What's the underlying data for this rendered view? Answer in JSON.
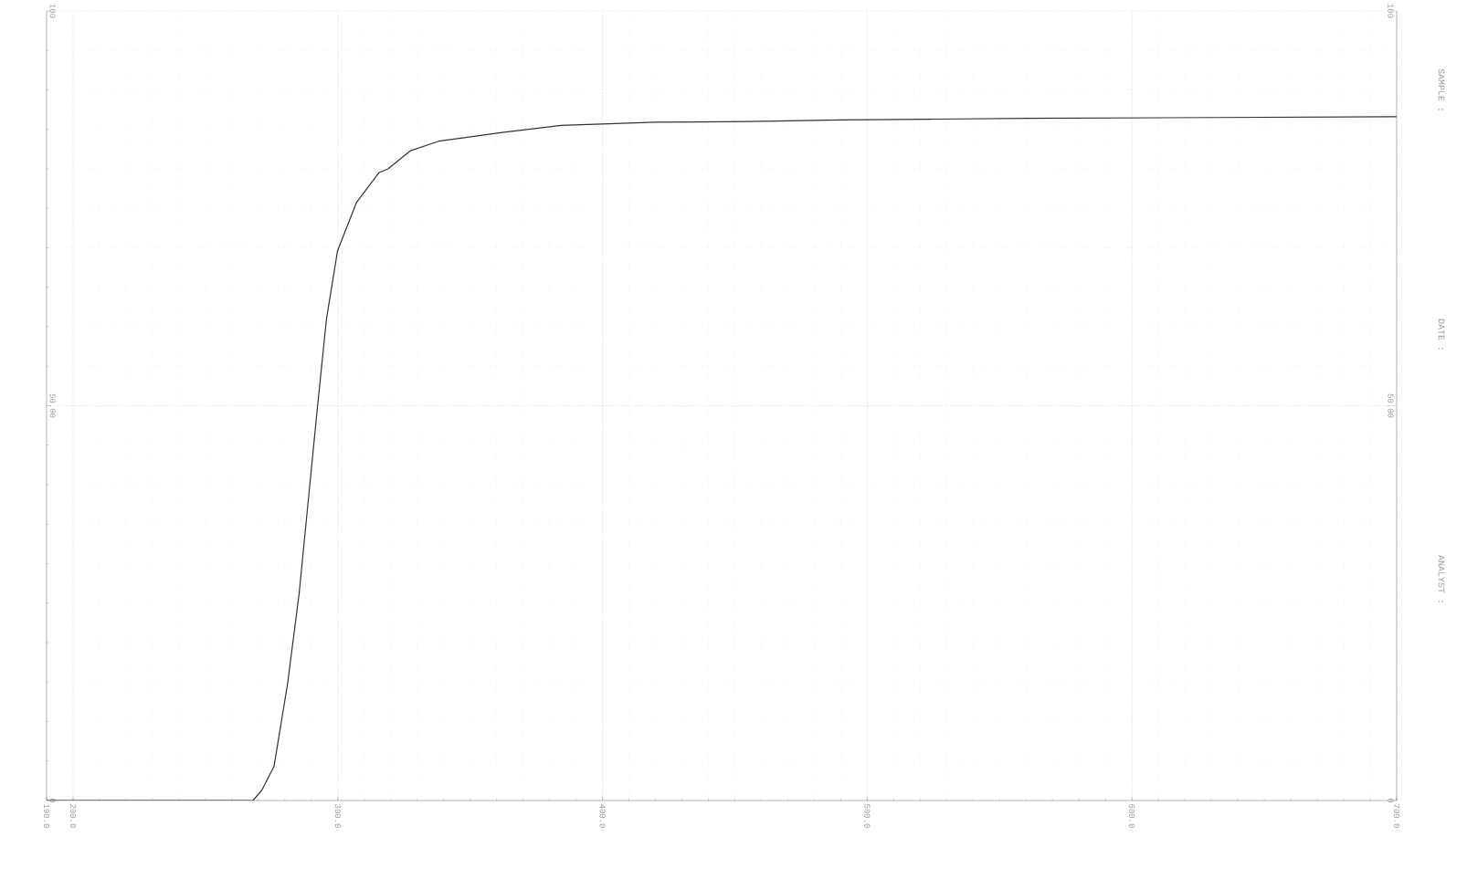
{
  "chart_data": {
    "type": "line",
    "x": [
      190,
      264.9,
      268,
      271.3,
      275.9,
      281.0,
      285.4,
      288.8,
      292.2,
      295.7,
      299.9,
      307.0,
      315.5,
      319.0,
      327.5,
      338.1,
      362.1,
      384.4,
      419.8,
      455.1,
      490.5,
      525.8,
      561.2,
      631.8,
      700
    ],
    "series": [
      {
        "color": "#333333",
        "values": [
          0,
          0,
          0,
          1.3,
          4.3,
          14.7,
          26.2,
          37.8,
          49.4,
          60.9,
          69.6,
          75.7,
          79.5,
          80.0,
          82.3,
          83.5,
          84.6,
          85.5,
          85.9,
          86.0,
          86.2,
          86.3,
          86.4,
          86.5,
          86.6
        ]
      }
    ],
    "xlim": [
      190,
      700
    ],
    "xticks": [
      {
        "value": 190,
        "label": "190.0"
      },
      {
        "value": 200,
        "label": "200.0"
      },
      {
        "value": 300,
        "label": "300.0"
      },
      {
        "value": 400,
        "label": "400.0"
      },
      {
        "value": 500,
        "label": "500.0"
      },
      {
        "value": 600,
        "label": "600.0"
      },
      {
        "value": 700,
        "label": "700.0"
      }
    ],
    "ylim": [
      0,
      100
    ],
    "yticks": [
      0,
      {
        "value": 50,
        "label": "50.00"
      },
      100
    ],
    "y2lim": [
      0,
      100
    ],
    "y2ticks": [
      0,
      {
        "value": 50,
        "label": "50.00"
      },
      100
    ],
    "grid": true,
    "annotations": [
      "SAMPLE :",
      "DATE :",
      "ANALYST :"
    ]
  }
}
